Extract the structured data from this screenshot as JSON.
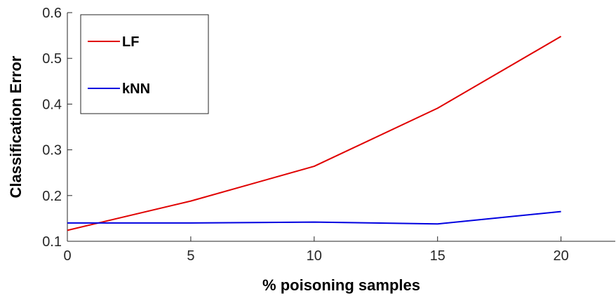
{
  "chart_data": {
    "type": "line",
    "xlabel": "% poisoning samples",
    "ylabel": "Classification Error",
    "xlim": [
      0,
      22.2
    ],
    "ylim": [
      0.1,
      0.6
    ],
    "xticks": [
      0,
      5,
      10,
      15,
      20
    ],
    "yticks": [
      0.1,
      0.2,
      0.3,
      0.4,
      0.5,
      0.6
    ],
    "xtick_labels": [
      "0",
      "5",
      "10",
      "15",
      "20"
    ],
    "ytick_labels": [
      "0.1",
      "0.2",
      "0.3",
      "0.4",
      "0.5",
      "0.6"
    ],
    "grid": false,
    "legend_position": "top-left",
    "series": [
      {
        "name": "LF",
        "color": "#e00000",
        "x": [
          0,
          5,
          10,
          15,
          20
        ],
        "values": [
          0.124,
          0.188,
          0.264,
          0.391,
          0.548
        ]
      },
      {
        "name": "kNN",
        "color": "#0000e0",
        "x": [
          0,
          5,
          10,
          15,
          20
        ],
        "values": [
          0.14,
          0.14,
          0.142,
          0.138,
          0.165
        ]
      }
    ]
  }
}
